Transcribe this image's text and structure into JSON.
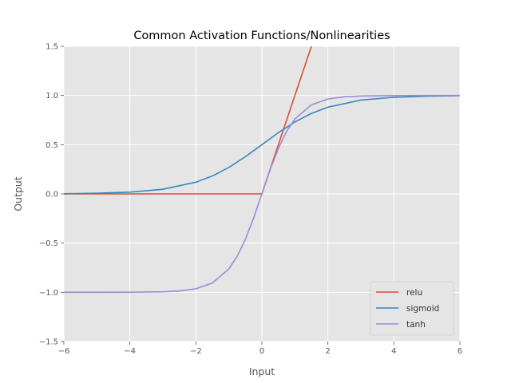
{
  "chart_data": {
    "type": "line",
    "title": "Common Activation Functions/Nonlinearities",
    "xlabel": "Input",
    "ylabel": "Output",
    "xlim": [
      -6,
      6
    ],
    "ylim": [
      -1.5,
      1.5
    ],
    "xticks": [
      -6,
      -4,
      -2,
      0,
      2,
      4,
      6
    ],
    "xtick_labels": [
      "−6",
      "−4",
      "−2",
      "0",
      "2",
      "4",
      "6"
    ],
    "yticks": [
      -1.5,
      -1.0,
      -0.5,
      0.0,
      0.5,
      1.0,
      1.5
    ],
    "ytick_labels": [
      "−1.5",
      "−1.0",
      "−0.5",
      "0.0",
      "0.5",
      "1.0",
      "1.5"
    ],
    "grid": true,
    "legend_position": "lower-right",
    "series": [
      {
        "name": "relu",
        "color": "#e24a33",
        "x": [
          -6,
          -4,
          -2,
          -1,
          -0.1,
          0,
          0.5,
          1,
          1.5
        ],
        "y": [
          0,
          0,
          0,
          0,
          0,
          0,
          0.5,
          1.0,
          1.5
        ]
      },
      {
        "name": "sigmoid",
        "color": "#348abd",
        "x": [
          -6,
          -5,
          -4,
          -3,
          -2,
          -1.5,
          -1,
          -0.5,
          0,
          0.5,
          1,
          1.5,
          2,
          3,
          4,
          5,
          6
        ],
        "y": [
          0.002,
          0.007,
          0.018,
          0.047,
          0.119,
          0.182,
          0.269,
          0.378,
          0.5,
          0.622,
          0.731,
          0.818,
          0.881,
          0.953,
          0.982,
          0.993,
          0.998
        ]
      },
      {
        "name": "tanh",
        "color": "#988ed5",
        "x": [
          -6,
          -5,
          -4,
          -3,
          -2.5,
          -2,
          -1.5,
          -1,
          -0.75,
          -0.5,
          -0.25,
          0,
          0.25,
          0.5,
          0.75,
          1,
          1.5,
          2,
          2.5,
          3,
          4,
          5,
          6
        ],
        "y": [
          -1.0,
          -1.0,
          -0.999,
          -0.995,
          -0.987,
          -0.964,
          -0.905,
          -0.762,
          -0.635,
          -0.462,
          -0.245,
          0.0,
          0.245,
          0.462,
          0.635,
          0.762,
          0.905,
          0.964,
          0.987,
          0.995,
          0.999,
          1.0,
          1.0
        ]
      }
    ]
  }
}
